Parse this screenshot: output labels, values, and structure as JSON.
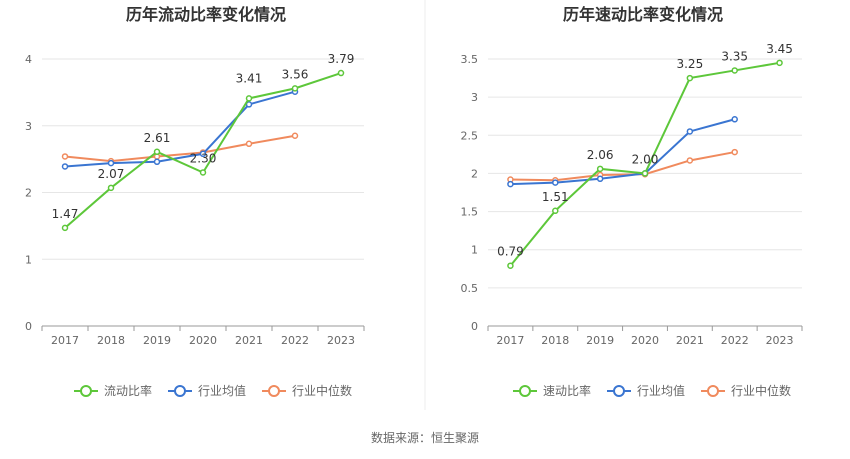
{
  "source_text": "数据来源：恒生聚源",
  "colors": {
    "main": "#5dc73a",
    "avg": "#3a75d1",
    "median": "#f08a5d"
  },
  "chart_data": [
    {
      "type": "line",
      "title": "历年流动比率变化情况",
      "categories": [
        "2017",
        "2018",
        "2019",
        "2020",
        "2021",
        "2022",
        "2023"
      ],
      "ylim": [
        0,
        4
      ],
      "yticks": [
        0,
        1,
        2,
        3,
        4
      ],
      "series": [
        {
          "name": "流动比率",
          "values": [
            1.47,
            2.07,
            2.61,
            2.3,
            3.41,
            3.56,
            3.79
          ],
          "color": "#5dc73a",
          "labeled": true
        },
        {
          "name": "行业均值",
          "values": [
            2.39,
            2.44,
            2.46,
            2.58,
            3.32,
            3.51,
            null
          ],
          "color": "#3a75d1",
          "labeled": false
        },
        {
          "name": "行业中位数",
          "values": [
            2.54,
            2.47,
            2.54,
            2.6,
            2.73,
            2.85,
            null
          ],
          "color": "#f08a5d",
          "labeled": false
        }
      ],
      "data_labels": [
        "1.47",
        "2.07",
        "2.61",
        "2.30",
        "3.41",
        "3.56",
        "3.79"
      ]
    },
    {
      "type": "line",
      "title": "历年速动比率变化情况",
      "categories": [
        "2017",
        "2018",
        "2019",
        "2020",
        "2021",
        "2022",
        "2023"
      ],
      "ylim": [
        0,
        3.5
      ],
      "yticks": [
        0,
        0.5,
        1,
        1.5,
        2,
        2.5,
        3,
        3.5
      ],
      "series": [
        {
          "name": "速动比率",
          "values": [
            0.79,
            1.51,
            2.06,
            2.0,
            3.25,
            3.35,
            3.45
          ],
          "color": "#5dc73a",
          "labeled": true
        },
        {
          "name": "行业均值",
          "values": [
            1.86,
            1.88,
            1.93,
            2.0,
            2.55,
            2.71,
            null
          ],
          "color": "#3a75d1",
          "labeled": false
        },
        {
          "name": "行业中位数",
          "values": [
            1.92,
            1.91,
            1.98,
            1.99,
            2.17,
            2.28,
            null
          ],
          "color": "#f08a5d",
          "labeled": false
        }
      ],
      "data_labels": [
        "0.79",
        "1.51",
        "2.06",
        "2.00",
        "3.25",
        "3.35",
        "3.45"
      ]
    }
  ]
}
